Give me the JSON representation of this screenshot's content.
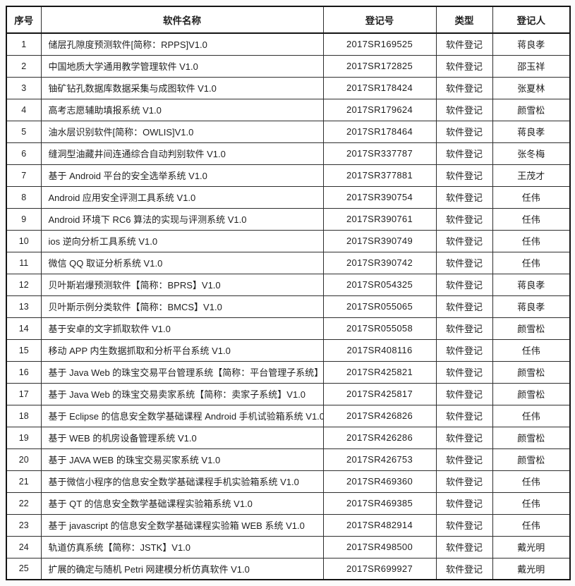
{
  "table": {
    "columns": [
      {
        "key": "index",
        "label": "序号"
      },
      {
        "key": "name",
        "label": "软件名称"
      },
      {
        "key": "reg_no",
        "label": "登记号"
      },
      {
        "key": "type",
        "label": "类型"
      },
      {
        "key": "registrant",
        "label": "登记人"
      }
    ],
    "rows": [
      {
        "index": "1",
        "name": "储层孔隙度预测软件[简称：RPPS]V1.0",
        "reg_no": "2017SR169525",
        "type": "软件登记",
        "registrant": "蒋良孝"
      },
      {
        "index": "2",
        "name": "中国地质大学通用教学管理软件 V1.0",
        "reg_no": "2017SR172825",
        "type": "软件登记",
        "registrant": "邵玉祥"
      },
      {
        "index": "3",
        "name": "铀矿钻孔数据库数据采集与成图软件 V1.0",
        "reg_no": "2017SR178424",
        "type": "软件登记",
        "registrant": "张夏林"
      },
      {
        "index": "4",
        "name": "高考志愿辅助填报系统 V1.0",
        "reg_no": "2017SR179624",
        "type": "软件登记",
        "registrant": "颜雪松"
      },
      {
        "index": "5",
        "name": "油水层识别软件[简称：OWLIS]V1.0",
        "reg_no": "2017SR178464",
        "type": "软件登记",
        "registrant": "蒋良孝"
      },
      {
        "index": "6",
        "name": "缝洞型油藏井间连通综合自动判别软件 V1.0",
        "reg_no": "2017SR337787",
        "type": "软件登记",
        "registrant": "张冬梅"
      },
      {
        "index": "7",
        "name": "基于 Android 平台的安全选举系统 V1.0",
        "reg_no": "2017SR377881",
        "type": "软件登记",
        "registrant": "王茂才"
      },
      {
        "index": "8",
        "name": "Android 应用安全评测工具系统 V1.0",
        "reg_no": "2017SR390754",
        "type": "软件登记",
        "registrant": "任伟"
      },
      {
        "index": "9",
        "name": "Android 环境下 RC6 算法的实现与评测系统 V1.0",
        "reg_no": "2017SR390761",
        "type": "软件登记",
        "registrant": "任伟"
      },
      {
        "index": "10",
        "name": "ios 逆向分析工具系统 V1.0",
        "reg_no": "2017SR390749",
        "type": "软件登记",
        "registrant": "任伟"
      },
      {
        "index": "11",
        "name": "微信 QQ 取证分析系统 V1.0",
        "reg_no": "2017SR390742",
        "type": "软件登记",
        "registrant": "任伟"
      },
      {
        "index": "12",
        "name": "贝叶斯岩爆预测软件【简称：BPRS】V1.0",
        "reg_no": "2017SR054325",
        "type": "软件登记",
        "registrant": "蒋良孝"
      },
      {
        "index": "13",
        "name": "贝叶斯示例分类软件【简称：BMCS】V1.0",
        "reg_no": "2017SR055065",
        "type": "软件登记",
        "registrant": "蒋良孝"
      },
      {
        "index": "14",
        "name": "基于安卓的文字抓取软件 V1.0",
        "reg_no": "2017SR055058",
        "type": "软件登记",
        "registrant": "颜雪松"
      },
      {
        "index": "15",
        "name": "移动 APP 内生数据抓取和分析平台系统 V1.0",
        "reg_no": "2017SR408116",
        "type": "软件登记",
        "registrant": "任伟"
      },
      {
        "index": "16",
        "name": "基于 Java Web 的珠宝交易平台管理系统【简称：平台管理子系统】",
        "reg_no": "2017SR425821",
        "type": "软件登记",
        "registrant": "颜雪松"
      },
      {
        "index": "17",
        "name": "基于 Java Web 的珠宝交易卖家系统【简称：卖家子系统】V1.0",
        "reg_no": "2017SR425817",
        "type": "软件登记",
        "registrant": "颜雪松"
      },
      {
        "index": "18",
        "name": "基于 Eclipse 的信息安全数学基础课程 Android 手机试验箱系统 V1.0",
        "reg_no": "2017SR426826",
        "type": "软件登记",
        "registrant": "任伟"
      },
      {
        "index": "19",
        "name": "基于 WEB 的机房设备管理系统 V1.0",
        "reg_no": "2017SR426286",
        "type": "软件登记",
        "registrant": "颜雪松"
      },
      {
        "index": "20",
        "name": "基于 JAVA WEB 的珠宝交易买家系统 V1.0",
        "reg_no": "2017SR426753",
        "type": "软件登记",
        "registrant": "颜雪松"
      },
      {
        "index": "21",
        "name": "基于微信小程序的信息安全数学基础课程手机实验箱系统 V1.0",
        "reg_no": "2017SR469360",
        "type": "软件登记",
        "registrant": "任伟"
      },
      {
        "index": "22",
        "name": "基于 QT 的信息安全数学基础课程实验箱系统 V1.0",
        "reg_no": "2017SR469385",
        "type": "软件登记",
        "registrant": "任伟"
      },
      {
        "index": "23",
        "name": "基于 javascript 的信息安全数学基础课程实验箱 WEB 系统 V1.0",
        "reg_no": "2017SR482914",
        "type": "软件登记",
        "registrant": "任伟"
      },
      {
        "index": "24",
        "name": "轨道仿真系统【简称：JSTK】V1.0",
        "reg_no": "2017SR498500",
        "type": "软件登记",
        "registrant": "戴光明"
      },
      {
        "index": "25",
        "name": "扩展的确定与随机 Petri 网建模分析仿真软件 V1.0",
        "reg_no": "2017SR699927",
        "type": "软件登记",
        "registrant": "戴光明"
      }
    ]
  },
  "colors": {
    "outer_border": "#141414",
    "inner_border": "#2e2e2e",
    "text": "#1f1f1f",
    "background": "#ffffff"
  }
}
